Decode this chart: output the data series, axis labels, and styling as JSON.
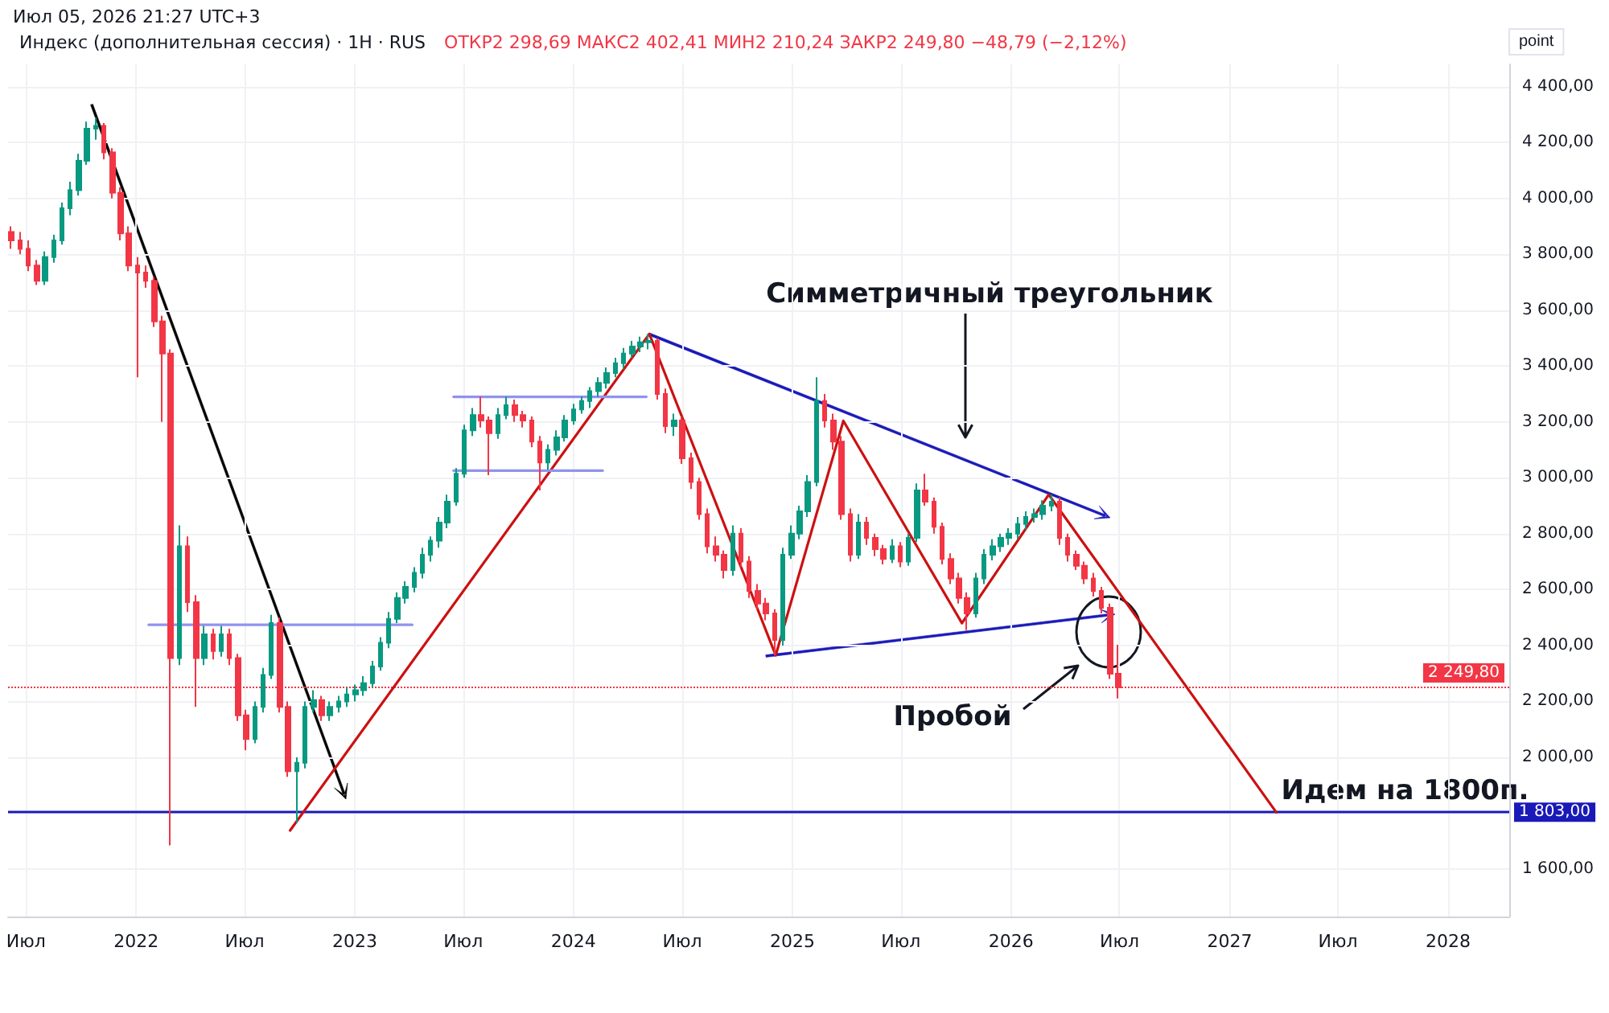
{
  "chart_data": {
    "type": "candlestick",
    "title": "Индекс (дополнительная сессия) · 1Н · RUS",
    "subtitle": "ОТКР2 298,69  МАКС2 402,41  МИН2 210,24  ЗАКР2 249,80  −48,79 (−2,12%)",
    "ylabel": "point",
    "annotations": [
      "Июл 05, 2026 21:27 UTC+3",
      "Симметричный треугольник",
      "Пробой",
      {
        "text": "Идем на 1800п.",
        "x": "2027-03-20",
        "y": 1803
      }
    ],
    "x": [
      "2021-06-07",
      "2021-06-21",
      "2021-07-05",
      "2021-07-19",
      "2021-08-02",
      "2021-08-16",
      "2021-08-30",
      "2021-09-13",
      "2021-09-27",
      "2021-10-11",
      "2021-10-25",
      "2021-11-08",
      "2021-11-22",
      "2021-12-06",
      "2021-12-20",
      "2022-01-03",
      "2022-01-17",
      "2022-01-31",
      "2022-02-14",
      "2022-02-28",
      "2022-03-14",
      "2022-03-28",
      "2022-04-11",
      "2022-04-25",
      "2022-05-09",
      "2022-05-23",
      "2022-06-06",
      "2022-06-20",
      "2022-07-04",
      "2022-07-18",
      "2022-08-01",
      "2022-08-15",
      "2022-08-29",
      "2022-09-12",
      "2022-09-26",
      "2022-10-10",
      "2022-10-24",
      "2022-11-07",
      "2022-11-21",
      "2022-12-05",
      "2022-12-19",
      "2023-01-02",
      "2023-01-16",
      "2023-01-30",
      "2023-02-13",
      "2023-02-27",
      "2023-03-13",
      "2023-03-27",
      "2023-04-10",
      "2023-04-24",
      "2023-05-08",
      "2023-05-22",
      "2023-06-05",
      "2023-06-19",
      "2023-07-03",
      "2023-07-17",
      "2023-07-31",
      "2023-08-14",
      "2023-08-28",
      "2023-09-11",
      "2023-09-25",
      "2023-10-09",
      "2023-10-23",
      "2023-11-06",
      "2023-11-20",
      "2023-12-04",
      "2023-12-18",
      "2024-01-01",
      "2024-01-15",
      "2024-01-29",
      "2024-02-12",
      "2024-02-26",
      "2024-03-11",
      "2024-03-25",
      "2024-04-08",
      "2024-04-22",
      "2024-05-06",
      "2024-05-20",
      "2024-06-03",
      "2024-06-17",
      "2024-07-01",
      "2024-07-15",
      "2024-07-29",
      "2024-08-12",
      "2024-08-26",
      "2024-09-09",
      "2024-09-23",
      "2024-10-07",
      "2024-10-21",
      "2024-11-04",
      "2024-11-18",
      "2024-12-02",
      "2024-12-16",
      "2024-12-30",
      "2025-01-13",
      "2025-01-27",
      "2025-02-10",
      "2025-02-24",
      "2025-03-10",
      "2025-03-24",
      "2025-04-07",
      "2025-04-21",
      "2025-05-05",
      "2025-05-19",
      "2025-06-02",
      "2025-06-16",
      "2025-06-30",
      "2025-07-14",
      "2025-07-28",
      "2025-08-11",
      "2025-08-25",
      "2025-09-08",
      "2025-09-22",
      "2025-10-06",
      "2025-10-20",
      "2025-11-03",
      "2025-11-17",
      "2025-12-01",
      "2025-12-15",
      "2025-12-29",
      "2026-01-12",
      "2026-01-26",
      "2026-02-09",
      "2026-02-23",
      "2026-03-09",
      "2026-03-23",
      "2026-04-06",
      "2026-04-20",
      "2026-05-04",
      "2026-05-18",
      "2026-06-01",
      "2026-06-15",
      "2026-06-29"
    ],
    "ohlc": [
      [
        3880,
        3900,
        3820,
        3850
      ],
      [
        3850,
        3880,
        3800,
        3820
      ],
      [
        3820,
        3850,
        3740,
        3760
      ],
      [
        3760,
        3780,
        3690,
        3705
      ],
      [
        3705,
        3810,
        3690,
        3790
      ],
      [
        3790,
        3870,
        3770,
        3850
      ],
      [
        3850,
        3985,
        3835,
        3965
      ],
      [
        3965,
        4060,
        3940,
        4030
      ],
      [
        4030,
        4160,
        4010,
        4135
      ],
      [
        4135,
        4275,
        4120,
        4250
      ],
      [
        4250,
        4290,
        4210,
        4260
      ],
      [
        4260,
        4270,
        4140,
        4165
      ],
      [
        4165,
        4180,
        4000,
        4020
      ],
      [
        4020,
        4040,
        3850,
        3875
      ],
      [
        3875,
        3900,
        3740,
        3760
      ],
      [
        3760,
        3790,
        3360,
        3735
      ],
      [
        3735,
        3760,
        3680,
        3705
      ],
      [
        3705,
        3720,
        3540,
        3560
      ],
      [
        3560,
        3580,
        3200,
        3445
      ],
      [
        3445,
        3460,
        1685,
        2355
      ],
      [
        2355,
        2830,
        2330,
        2755
      ],
      [
        2755,
        2790,
        2520,
        2555
      ],
      [
        2555,
        2580,
        2180,
        2355
      ],
      [
        2355,
        2470,
        2330,
        2440
      ],
      [
        2440,
        2460,
        2350,
        2380
      ],
      [
        2380,
        2470,
        2360,
        2440
      ],
      [
        2440,
        2460,
        2330,
        2355
      ],
      [
        2355,
        2370,
        2130,
        2150
      ],
      [
        2150,
        2170,
        2025,
        2065
      ],
      [
        2065,
        2200,
        2050,
        2180
      ],
      [
        2180,
        2320,
        2160,
        2295
      ],
      [
        2295,
        2510,
        2280,
        2480
      ],
      [
        2480,
        2500,
        2160,
        2180
      ],
      [
        2180,
        2200,
        1930,
        1950
      ],
      [
        1950,
        2000,
        1765,
        1980
      ],
      [
        1980,
        2200,
        1960,
        2180
      ],
      [
        2180,
        2240,
        2160,
        2205
      ],
      [
        2205,
        2220,
        2130,
        2150
      ],
      [
        2150,
        2200,
        2130,
        2180
      ],
      [
        2180,
        2220,
        2160,
        2200
      ],
      [
        2200,
        2250,
        2180,
        2225
      ],
      [
        2225,
        2260,
        2200,
        2240
      ],
      [
        2240,
        2290,
        2220,
        2265
      ],
      [
        2265,
        2345,
        2250,
        2325
      ],
      [
        2325,
        2430,
        2310,
        2410
      ],
      [
        2410,
        2520,
        2390,
        2495
      ],
      [
        2495,
        2590,
        2480,
        2570
      ],
      [
        2570,
        2630,
        2550,
        2610
      ],
      [
        2610,
        2680,
        2590,
        2660
      ],
      [
        2660,
        2750,
        2640,
        2725
      ],
      [
        2725,
        2790,
        2700,
        2775
      ],
      [
        2775,
        2860,
        2750,
        2840
      ],
      [
        2840,
        2940,
        2820,
        2915
      ],
      [
        2915,
        3035,
        2900,
        3015
      ],
      [
        3015,
        3190,
        3000,
        3170
      ],
      [
        3170,
        3250,
        3150,
        3225
      ],
      [
        3225,
        3290,
        3180,
        3205
      ],
      [
        3205,
        3220,
        3010,
        3160
      ],
      [
        3160,
        3250,
        3140,
        3225
      ],
      [
        3225,
        3290,
        3210,
        3260
      ],
      [
        3260,
        3280,
        3200,
        3225
      ],
      [
        3225,
        3240,
        3180,
        3205
      ],
      [
        3205,
        3220,
        3110,
        3130
      ],
      [
        3130,
        3150,
        2955,
        3055
      ],
      [
        3055,
        3120,
        3030,
        3100
      ],
      [
        3100,
        3170,
        3080,
        3145
      ],
      [
        3145,
        3225,
        3130,
        3205
      ],
      [
        3205,
        3265,
        3190,
        3245
      ],
      [
        3245,
        3290,
        3230,
        3275
      ],
      [
        3275,
        3325,
        3250,
        3310
      ],
      [
        3310,
        3360,
        3290,
        3340
      ],
      [
        3340,
        3395,
        3320,
        3375
      ],
      [
        3375,
        3430,
        3360,
        3410
      ],
      [
        3410,
        3465,
        3390,
        3445
      ],
      [
        3445,
        3490,
        3430,
        3470
      ],
      [
        3470,
        3505,
        3450,
        3485
      ],
      [
        3485,
        3515,
        3460,
        3490
      ],
      [
        3490,
        3500,
        3280,
        3300
      ],
      [
        3300,
        3320,
        3160,
        3185
      ],
      [
        3185,
        3230,
        3150,
        3205
      ],
      [
        3205,
        3220,
        3050,
        3070
      ],
      [
        3070,
        3090,
        2960,
        2985
      ],
      [
        2985,
        3000,
        2850,
        2870
      ],
      [
        2870,
        2890,
        2730,
        2755
      ],
      [
        2755,
        2790,
        2700,
        2725
      ],
      [
        2725,
        2740,
        2640,
        2670
      ],
      [
        2670,
        2830,
        2650,
        2800
      ],
      [
        2800,
        2820,
        2680,
        2700
      ],
      [
        2700,
        2720,
        2570,
        2595
      ],
      [
        2595,
        2620,
        2530,
        2550
      ],
      [
        2550,
        2570,
        2490,
        2515
      ],
      [
        2515,
        2530,
        2365,
        2420
      ],
      [
        2420,
        2750,
        2400,
        2725
      ],
      [
        2725,
        2830,
        2710,
        2800
      ],
      [
        2800,
        2900,
        2780,
        2880
      ],
      [
        2880,
        3010,
        2860,
        2985
      ],
      [
        2985,
        3360,
        2970,
        3275
      ],
      [
        3275,
        3300,
        3180,
        3205
      ],
      [
        3205,
        3230,
        3100,
        3130
      ],
      [
        3130,
        3150,
        2850,
        2870
      ],
      [
        2870,
        2890,
        2700,
        2725
      ],
      [
        2725,
        2870,
        2710,
        2840
      ],
      [
        2840,
        2860,
        2760,
        2785
      ],
      [
        2785,
        2800,
        2720,
        2745
      ],
      [
        2745,
        2760,
        2690,
        2710
      ],
      [
        2710,
        2780,
        2695,
        2755
      ],
      [
        2755,
        2770,
        2680,
        2700
      ],
      [
        2700,
        2800,
        2685,
        2785
      ],
      [
        2785,
        2980,
        2770,
        2955
      ],
      [
        2955,
        3015,
        2900,
        2915
      ],
      [
        2915,
        2930,
        2800,
        2825
      ],
      [
        2825,
        2840,
        2690,
        2710
      ],
      [
        2710,
        2730,
        2620,
        2640
      ],
      [
        2640,
        2660,
        2550,
        2570
      ],
      [
        2570,
        2590,
        2455,
        2515
      ],
      [
        2515,
        2660,
        2500,
        2640
      ],
      [
        2640,
        2745,
        2620,
        2725
      ],
      [
        2725,
        2780,
        2705,
        2755
      ],
      [
        2755,
        2800,
        2735,
        2785
      ],
      [
        2785,
        2820,
        2760,
        2800
      ],
      [
        2800,
        2860,
        2780,
        2835
      ],
      [
        2835,
        2880,
        2815,
        2860
      ],
      [
        2860,
        2890,
        2840,
        2870
      ],
      [
        2870,
        2920,
        2850,
        2900
      ],
      [
        2900,
        2940,
        2880,
        2915
      ],
      [
        2915,
        2930,
        2760,
        2785
      ],
      [
        2785,
        2800,
        2700,
        2725
      ],
      [
        2725,
        2740,
        2670,
        2685
      ],
      [
        2685,
        2700,
        2620,
        2640
      ],
      [
        2640,
        2660,
        2575,
        2595
      ],
      [
        2595,
        2610,
        2515,
        2535
      ],
      [
        2535,
        2550,
        2280,
        2298.69
      ],
      [
        2298.69,
        2402.41,
        2210.24,
        2249.8
      ]
    ],
    "colors": [
      "#f23645",
      "#f23645",
      "#f23645",
      "#f23645",
      "#089981",
      "#089981",
      "#089981",
      "#089981",
      "#089981",
      "#089981",
      "#089981",
      "#f23645",
      "#f23645",
      "#f23645",
      "#f23645",
      "#f23645",
      "#f23645",
      "#f23645",
      "#f23645",
      "#f23645",
      "#089981",
      "#f23645",
      "#f23645",
      "#089981",
      "#f23645",
      "#089981",
      "#f23645",
      "#f23645",
      "#f23645",
      "#089981",
      "#089981",
      "#089981",
      "#f23645",
      "#f23645",
      "#089981",
      "#089981",
      "#089981",
      "#f23645",
      "#089981",
      "#089981",
      "#089981",
      "#089981",
      "#089981",
      "#089981",
      "#089981",
      "#089981",
      "#089981",
      "#089981",
      "#089981",
      "#089981",
      "#089981",
      "#089981",
      "#089981",
      "#089981",
      "#089981",
      "#089981",
      "#f23645",
      "#f23645",
      "#089981",
      "#089981",
      "#f23645",
      "#f23645",
      "#f23645",
      "#f23645",
      "#089981",
      "#089981",
      "#089981",
      "#089981",
      "#089981",
      "#089981",
      "#089981",
      "#089981",
      "#089981",
      "#089981",
      "#089981",
      "#089981",
      "#089981",
      "#f23645",
      "#f23645",
      "#089981",
      "#f23645",
      "#f23645",
      "#f23645",
      "#f23645",
      "#f23645",
      "#f23645",
      "#089981",
      "#f23645",
      "#f23645",
      "#f23645",
      "#f23645",
      "#f23645",
      "#089981",
      "#089981",
      "#089981",
      "#089981",
      "#089981",
      "#f23645",
      "#f23645",
      "#f23645",
      "#f23645",
      "#089981",
      "#f23645",
      "#f23645",
      "#f23645",
      "#089981",
      "#f23645",
      "#089981",
      "#089981",
      "#f23645",
      "#f23645",
      "#f23645",
      "#f23645",
      "#f23645",
      "#f23645",
      "#089981",
      "#089981",
      "#089981",
      "#089981",
      "#089981",
      "#089981",
      "#089981",
      "#089981",
      "#089981",
      "#089981",
      "#f23645",
      "#f23645",
      "#f23645",
      "#f23645",
      "#f23645",
      "#f23645",
      "#f23645",
      "#f23645"
    ],
    "series": [
      {
        "type": "line",
        "x": [
          "2022-09-15",
          "2024-05-07"
        ],
        "values": [
          1738,
          3515
        ],
        "color": "#cc1111"
      },
      {
        "type": "line",
        "x": [
          "2024-05-07",
          "2024-12-04",
          "2025-03-27",
          "2025-10-11",
          "2026-03-05",
          "2027-03-20"
        ],
        "values": [
          3515,
          2365,
          3204,
          2480,
          2940,
          1803
        ],
        "color": "#cc1111"
      },
      {
        "type": "line",
        "x": [
          "2022-01-22",
          "2023-04-07"
        ],
        "values": [
          2474,
          2474
        ],
        "color": "#8f93ee"
      },
      {
        "type": "line",
        "x": [
          "2023-06-15",
          "2024-05-02"
        ],
        "values": [
          3290,
          3290
        ],
        "color": "#8f93ee"
      },
      {
        "type": "line",
        "x": [
          "2023-06-15",
          "2024-02-19"
        ],
        "values": [
          3026,
          3026
        ],
        "color": "#8f93ee"
      }
    ],
    "ref_lines": [
      {
        "axis": "y",
        "value": 1803,
        "label": "1 803,00",
        "color": "#1a1ab8",
        "line_style": "solid"
      },
      {
        "axis": "y",
        "value": 2249.8,
        "label": "2 249,80",
        "color": "#f23645",
        "line_style": "dotted"
      }
    ],
    "xlim": [
      "2021-06-01",
      "2028-04-12"
    ],
    "xticks": [
      {
        "value": "2021-07-01",
        "label": "Июл"
      },
      {
        "value": "2022-01-01",
        "label": "2022"
      },
      {
        "value": "2022-07-01",
        "label": "Июл"
      },
      {
        "value": "2023-01-01",
        "label": "2023"
      },
      {
        "value": "2023-07-01",
        "label": "Июл"
      },
      {
        "value": "2024-01-01",
        "label": "2024"
      },
      {
        "value": "2024-07-01",
        "label": "Июл"
      },
      {
        "value": "2025-01-01",
        "label": "2025"
      },
      {
        "value": "2025-07-01",
        "label": "Июл"
      },
      {
        "value": "2026-01-01",
        "label": "2026"
      },
      {
        "value": "2026-07-01",
        "label": "Июл"
      },
      {
        "value": "2027-01-01",
        "label": "2027"
      },
      {
        "value": "2027-07-01",
        "label": "Июл"
      },
      {
        "value": "2028-01-01",
        "label": "2028"
      }
    ],
    "ylim": [
      1430,
      4480
    ],
    "yticks": [
      {
        "value": 1600,
        "label": "1 600,00"
      },
      {
        "value": 1800,
        "label": null
      },
      {
        "value": 2000,
        "label": "2 000,00"
      },
      {
        "value": 2200,
        "label": "2 200,00"
      },
      {
        "value": 2400,
        "label": "2 400,00"
      },
      {
        "value": 2600,
        "label": "2 600,00"
      },
      {
        "value": 2800,
        "label": "2 800,00"
      },
      {
        "value": 3000,
        "label": "3 000,00"
      },
      {
        "value": 3200,
        "label": "3 200,00"
      },
      {
        "value": 3400,
        "label": "3 400,00"
      },
      {
        "value": 3600,
        "label": "3 600,00"
      },
      {
        "value": 3800,
        "label": "3 800,00"
      },
      {
        "value": 4000,
        "label": "4 000,00"
      },
      {
        "value": 4200,
        "label": "4 200,00"
      },
      {
        "value": 4400,
        "label": "4 400,00"
      }
    ],
    "grid": true
  }
}
